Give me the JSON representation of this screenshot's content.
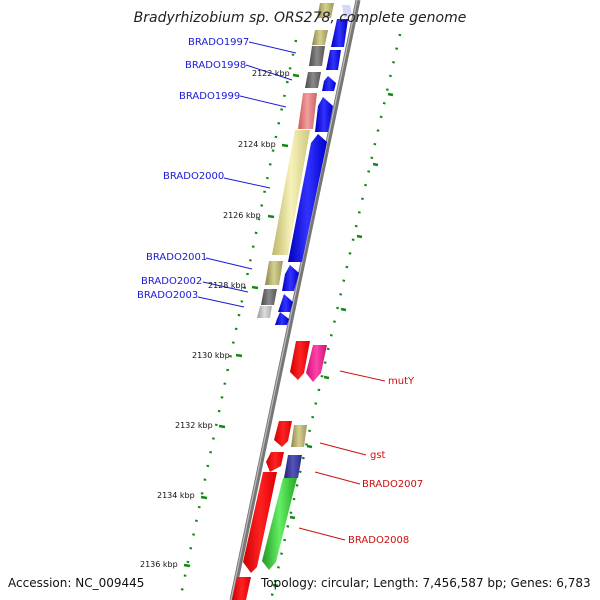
{
  "title": "Bradyrhizobium sp. ORS278, complete genome",
  "accession": "Accession: NC_009445",
  "topology": "Topology: circular; Length: 7,456,587 bp; Genes: 6,783",
  "ticks": [
    "2122 kbp",
    "2124 kbp",
    "2126 kbp",
    "2128 kbp",
    "2130 kbp",
    "2132 kbp",
    "2134 kbp",
    "2136 kbp"
  ],
  "left_labels": [
    "BRADO1997",
    "BRADO1998",
    "BRADO1999",
    "BRADO2000",
    "BRADO2001",
    "BRADO2002",
    "BRADO2003"
  ],
  "right_labels": [
    "mutY",
    "gst",
    "BRADO2007",
    "BRADO2008"
  ],
  "colors": {
    "blue": "#0000ee",
    "red": "#ff0000",
    "magenta": "#ee2299",
    "khaki": "#b8b070",
    "pale_yellow": "#eee8a0",
    "gray": "#707070",
    "light_gray": "#bbbbbb",
    "pink": "#e88080",
    "green": "#33cc33",
    "navy": "#333399",
    "dots": "#118811"
  }
}
